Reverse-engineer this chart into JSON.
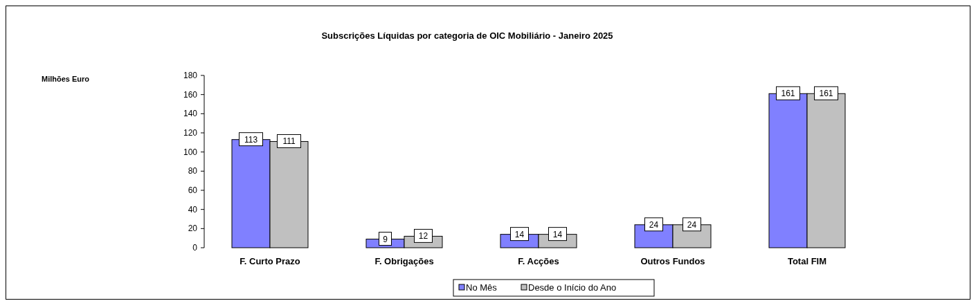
{
  "chart_data": {
    "type": "bar",
    "title": "Subscrições Líquidas por categoria de OIC Mobiliário - Janeiro 2025",
    "annotations": [
      "Milhões Euro"
    ],
    "categories": [
      "F. Curto Prazo",
      "F. Obrigações",
      "F. Acções",
      "Outros Fundos",
      "Total FIM"
    ],
    "series": [
      {
        "name": "No Mês",
        "color": "#8080ff",
        "values": [
          113,
          9,
          14,
          24,
          161
        ]
      },
      {
        "name": "Desde o Início do Ano",
        "color": "#c0c0c0",
        "values": [
          111,
          12,
          14,
          24,
          161
        ]
      }
    ],
    "ylim": [
      0,
      180
    ],
    "yticks": [
      0,
      20,
      40,
      60,
      80,
      100,
      120,
      140,
      160,
      180
    ],
    "data_labels": true,
    "legend": "bottom",
    "grid": false
  }
}
